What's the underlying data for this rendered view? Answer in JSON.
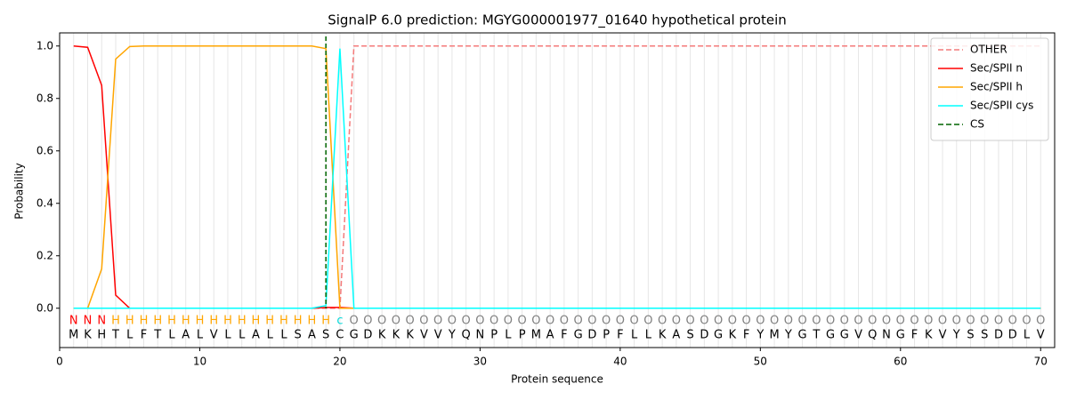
{
  "chart_data": {
    "type": "line",
    "title": "SignalP 6.0 prediction: MGYG000001977_01640 hypothetical protein",
    "x_label": "Protein sequence",
    "y_label": "Probability",
    "x": [
      1,
      2,
      3,
      4,
      5,
      6,
      7,
      8,
      9,
      10,
      11,
      12,
      13,
      14,
      15,
      16,
      17,
      18,
      19,
      20,
      21,
      22,
      23,
      24,
      25,
      26,
      27,
      28,
      29,
      30,
      31,
      32,
      33,
      34,
      35,
      36,
      37,
      38,
      39,
      40,
      41,
      42,
      43,
      44,
      45,
      46,
      47,
      48,
      49,
      50,
      51,
      52,
      53,
      54,
      55,
      56,
      57,
      58,
      59,
      60,
      61,
      62,
      63,
      64,
      65,
      66,
      67,
      68,
      69,
      70
    ],
    "sequence": [
      "M",
      "K",
      "H",
      "T",
      "L",
      "F",
      "T",
      "L",
      "A",
      "L",
      "V",
      "L",
      "L",
      "A",
      "L",
      "L",
      "S",
      "A",
      "S",
      "C",
      "G",
      "D",
      "K",
      "K",
      "K",
      "V",
      "V",
      "Y",
      "Q",
      "N",
      "P",
      "L",
      "P",
      "M",
      "A",
      "F",
      "G",
      "D",
      "P",
      "F",
      "L",
      "L",
      "K",
      "A",
      "S",
      "D",
      "G",
      "K",
      "F",
      "Y",
      "M",
      "Y",
      "G",
      "T",
      "G",
      "G",
      "V",
      "Q",
      "N",
      "G",
      "F",
      "K",
      "V",
      "Y",
      "S",
      "S",
      "D",
      "D",
      "L",
      "V"
    ],
    "labels": [
      "N",
      "N",
      "N",
      "H",
      "H",
      "H",
      "H",
      "H",
      "H",
      "H",
      "H",
      "H",
      "H",
      "H",
      "H",
      "H",
      "H",
      "H",
      "H",
      "c",
      "O",
      "O",
      "O",
      "O",
      "O",
      "O",
      "O",
      "O",
      "O",
      "O",
      "O",
      "O",
      "O",
      "O",
      "O",
      "O",
      "O",
      "O",
      "O",
      "O",
      "O",
      "O",
      "O",
      "O",
      "O",
      "O",
      "O",
      "O",
      "O",
      "O",
      "O",
      "O",
      "O",
      "O",
      "O",
      "O",
      "O",
      "O",
      "O",
      "O",
      "O",
      "O",
      "O",
      "O",
      "O",
      "O",
      "O",
      "O",
      "O",
      "O"
    ],
    "label_colors": {
      "N": "#ff0000",
      "H": "#ffa500",
      "c": "#00d8d8",
      "O": "#808080"
    },
    "series": [
      {
        "name": "OTHER",
        "color": "#f47a7a",
        "dashed": true,
        "values": [
          0,
          0,
          0,
          0,
          0,
          0,
          0,
          0,
          0,
          0,
          0,
          0,
          0,
          0,
          0,
          0,
          0,
          0,
          0,
          0,
          1,
          1,
          1,
          1,
          1,
          1,
          1,
          1,
          1,
          1,
          1,
          1,
          1,
          1,
          1,
          1,
          1,
          1,
          1,
          1,
          1,
          1,
          1,
          1,
          1,
          1,
          1,
          1,
          1,
          1,
          1,
          1,
          1,
          1,
          1,
          1,
          1,
          1,
          1,
          1,
          1,
          1,
          1,
          1,
          1,
          1,
          1,
          1,
          1,
          1
        ]
      },
      {
        "name": "Sec/SPII n",
        "color": "#ff0000",
        "dashed": false,
        "values": [
          1.0,
          0.995,
          0.85,
          0.05,
          0,
          0,
          0,
          0,
          0,
          0,
          0,
          0,
          0,
          0,
          0,
          0,
          0,
          0,
          0.003,
          0.003,
          0,
          0,
          0,
          0,
          0,
          0,
          0,
          0,
          0,
          0,
          0,
          0,
          0,
          0,
          0,
          0,
          0,
          0,
          0,
          0,
          0,
          0,
          0,
          0,
          0,
          0,
          0,
          0,
          0,
          0,
          0,
          0,
          0,
          0,
          0,
          0,
          0,
          0,
          0,
          0,
          0,
          0,
          0,
          0,
          0,
          0,
          0,
          0,
          0,
          0
        ]
      },
      {
        "name": "Sec/SPII h",
        "color": "#ffa500",
        "dashed": false,
        "values": [
          0,
          0,
          0.15,
          0.95,
          0.998,
          1,
          1,
          1,
          1,
          1,
          1,
          1,
          1,
          1,
          1,
          1,
          1,
          1,
          0.99,
          0,
          0,
          0,
          0,
          0,
          0,
          0,
          0,
          0,
          0,
          0,
          0,
          0,
          0,
          0,
          0,
          0,
          0,
          0,
          0,
          0,
          0,
          0,
          0,
          0,
          0,
          0,
          0,
          0,
          0,
          0,
          0,
          0,
          0,
          0,
          0,
          0,
          0,
          0,
          0,
          0,
          0,
          0,
          0,
          0,
          0,
          0,
          0,
          0,
          0,
          0
        ]
      },
      {
        "name": "Sec/SPII cys",
        "color": "#00ffff",
        "dashed": false,
        "values": [
          0,
          0,
          0,
          0,
          0,
          0,
          0,
          0,
          0,
          0,
          0,
          0,
          0,
          0,
          0,
          0,
          0,
          0,
          0.01,
          0.99,
          0,
          0,
          0,
          0,
          0,
          0,
          0,
          0,
          0,
          0,
          0,
          0,
          0,
          0,
          0,
          0,
          0,
          0,
          0,
          0,
          0,
          0,
          0,
          0,
          0,
          0,
          0,
          0,
          0,
          0,
          0,
          0,
          0,
          0,
          0,
          0,
          0,
          0,
          0,
          0,
          0,
          0,
          0,
          0,
          0,
          0,
          0,
          0,
          0,
          0
        ]
      }
    ],
    "cs": {
      "name": "CS",
      "x": 19,
      "color": "#006400"
    },
    "xlim": [
      0,
      71
    ],
    "ylim": [
      -0.15,
      1.05
    ],
    "xticks": [
      0,
      10,
      20,
      30,
      40,
      50,
      60,
      70
    ],
    "yticks": [
      {
        "value": 0,
        "label": "0.0"
      },
      {
        "value": 0.2,
        "label": "0.2"
      },
      {
        "value": 0.4,
        "label": "0.4"
      },
      {
        "value": 0.6,
        "label": "0.6"
      },
      {
        "value": 0.8,
        "label": "0.8"
      },
      {
        "value": 1.0,
        "label": "1.0"
      }
    ],
    "legend": "upper right"
  }
}
